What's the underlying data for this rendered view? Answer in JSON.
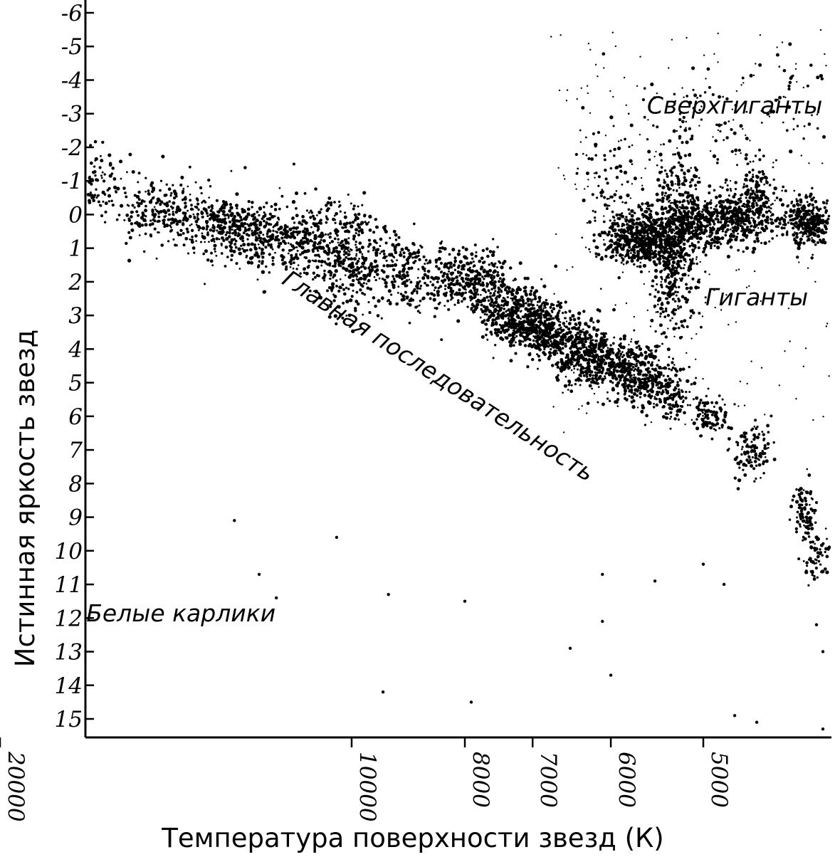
{
  "chart_data": {
    "type": "scatter",
    "xlabel": "Температура поверхности звезд (К)",
    "ylabel": "Истинная яркость звезд",
    "x_scale": "log-reversed",
    "y_inverted": true,
    "ylim": [
      -6,
      15
    ],
    "xlim": [
      38000,
      3300
    ],
    "y_ticks": [
      "-6",
      "-5",
      "-4",
      "-3",
      "-2",
      "-1",
      "0",
      "1",
      "2",
      "3",
      "4",
      "5",
      "6",
      "7",
      "8",
      "9",
      "10",
      "11",
      "12",
      "13",
      "14",
      "15"
    ],
    "x_ticks": [
      {
        "value": 20000,
        "label": "20000"
      },
      {
        "value": 10000,
        "label": "10000"
      },
      {
        "value": 8000,
        "label": "8000"
      },
      {
        "value": 7000,
        "label": "7000"
      },
      {
        "value": 6000,
        "label": "6000"
      },
      {
        "value": 5000,
        "label": "5000"
      }
    ],
    "grid": false,
    "annotations": [
      {
        "text": "Сверхгиганты",
        "x": 4700,
        "y": -3.0
      },
      {
        "text": "Гиганты",
        "x": 4500,
        "y": 2.7
      },
      {
        "text": "Главная последовательность",
        "x": 8500,
        "y": 5.0
      },
      {
        "text": "Белые карлики",
        "x": 14000,
        "y": 12.1
      }
    ],
    "series": [
      {
        "name": "Главная последовательность",
        "clusters": [
          {
            "x": 33000,
            "y": -2.7,
            "sx": 0.01,
            "sy": 0.35,
            "n": 30
          },
          {
            "x": 27500,
            "y": -2.9,
            "sx": 0.012,
            "sy": 0.5,
            "n": 130
          },
          {
            "x": 19000,
            "y": -1.3,
            "sx": 0.025,
            "sy": 0.45,
            "n": 320
          },
          {
            "x": 16800,
            "y": -0.9,
            "sx": 0.015,
            "sy": 0.5,
            "n": 150
          },
          {
            "x": 14500,
            "y": -0.1,
            "sx": 0.02,
            "sy": 0.5,
            "n": 240
          },
          {
            "x": 12800,
            "y": 0.3,
            "sx": 0.017,
            "sy": 0.4,
            "n": 220
          },
          {
            "x": 11500,
            "y": 0.7,
            "sx": 0.03,
            "sy": 0.55,
            "n": 460
          },
          {
            "x": 10000,
            "y": 1.4,
            "sx": 0.017,
            "sy": 0.8,
            "n": 380
          },
          {
            "x": 9000,
            "y": 1.7,
            "sx": 0.012,
            "sy": 0.55,
            "n": 150
          },
          {
            "x": 8100,
            "y": 1.9,
            "sx": 0.02,
            "sy": 0.45,
            "n": 240
          },
          {
            "x": 7700,
            "y": 2.3,
            "sx": 0.016,
            "sy": 0.5,
            "n": 190
          },
          {
            "x": 7400,
            "y": 3.1,
            "sx": 0.01,
            "sy": 0.35,
            "n": 90
          },
          {
            "x": 7100,
            "y": 3.0,
            "sx": 0.014,
            "sy": 0.45,
            "n": 280
          },
          {
            "x": 6750,
            "y": 3.5,
            "sx": 0.015,
            "sy": 0.4,
            "n": 380
          },
          {
            "x": 6400,
            "y": 4.3,
            "sx": 0.012,
            "sy": 0.45,
            "n": 230
          },
          {
            "x": 6200,
            "y": 4.0,
            "sx": 0.008,
            "sy": 0.4,
            "n": 90
          },
          {
            "x": 5900,
            "y": 4.5,
            "sx": 0.016,
            "sy": 0.35,
            "n": 290
          },
          {
            "x": 5600,
            "y": 5.0,
            "sx": 0.012,
            "sy": 0.45,
            "n": 230
          },
          {
            "x": 5300,
            "y": 5.5,
            "sx": 0.008,
            "sy": 0.45,
            "n": 90
          },
          {
            "x": 5000,
            "y": 5.9,
            "sx": 0.006,
            "sy": 0.3,
            "n": 55
          },
          {
            "x": 4850,
            "y": 6.1,
            "sx": 0.006,
            "sy": 0.3,
            "n": 40
          },
          {
            "x": 4550,
            "y": 7.0,
            "sx": 0.007,
            "sy": 0.45,
            "n": 110
          },
          {
            "x": 4100,
            "y": 8.8,
            "sx": 0.005,
            "sy": 0.4,
            "n": 100
          },
          {
            "x": 4000,
            "y": 10.2,
            "sx": 0.005,
            "sy": 0.4,
            "n": 60
          }
        ]
      },
      {
        "name": "Гиганты",
        "clusters": [
          {
            "x": 5700,
            "y": 0.8,
            "sx": 0.018,
            "sy": 0.35,
            "n": 340
          },
          {
            "x": 5400,
            "y": 0.5,
            "sx": 0.02,
            "sy": 0.45,
            "n": 420
          },
          {
            "x": 5300,
            "y": 1.8,
            "sx": 0.01,
            "sy": 0.8,
            "n": 260
          },
          {
            "x": 5250,
            "y": -0.6,
            "sx": 0.008,
            "sy": 0.6,
            "n": 160
          },
          {
            "x": 4900,
            "y": 0.2,
            "sx": 0.018,
            "sy": 0.35,
            "n": 320
          },
          {
            "x": 4600,
            "y": 0.0,
            "sx": 0.013,
            "sy": 0.45,
            "n": 280
          },
          {
            "x": 4500,
            "y": -0.8,
            "sx": 0.008,
            "sy": 0.4,
            "n": 70
          },
          {
            "x": 4050,
            "y": 0.2,
            "sx": 0.012,
            "sy": 0.35,
            "n": 320
          }
        ]
      },
      {
        "name": "Сверхгиганты",
        "clusters": [
          {
            "x": 6000,
            "y": -1.0,
            "sx": 0.015,
            "sy": 1.0,
            "n": 90
          },
          {
            "x": 5000,
            "y": -2.5,
            "sx": 0.03,
            "sy": 0.9,
            "n": 90
          },
          {
            "x": 4200,
            "y": -3.5,
            "sx": 0.02,
            "sy": 0.8,
            "n": 40
          }
        ]
      },
      {
        "name": "Белые карлики",
        "clusters": [
          {
            "x": 22000,
            "y": 0.5,
            "sx": 0.2,
            "sy": 1.5,
            "n": 30
          }
        ],
        "points": [
          {
            "x": 10300,
            "y": 9.6
          },
          {
            "x": 12600,
            "y": 9.1
          },
          {
            "x": 17500,
            "y": 10.6
          },
          {
            "x": 12000,
            "y": 10.7
          },
          {
            "x": 11600,
            "y": 11.4
          },
          {
            "x": 9300,
            "y": 11.3
          },
          {
            "x": 8000,
            "y": 11.5
          },
          {
            "x": 9400,
            "y": 14.2
          },
          {
            "x": 7900,
            "y": 14.5
          },
          {
            "x": 6100,
            "y": 10.7
          },
          {
            "x": 6100,
            "y": 12.1
          },
          {
            "x": 6500,
            "y": 12.9
          },
          {
            "x": 6000,
            "y": 13.7
          },
          {
            "x": 5500,
            "y": 10.9
          },
          {
            "x": 5000,
            "y": 10.4
          },
          {
            "x": 4800,
            "y": 11.0
          },
          {
            "x": 4000,
            "y": 12.2
          },
          {
            "x": 3950,
            "y": 13.0
          },
          {
            "x": 4700,
            "y": 14.9
          },
          {
            "x": 4500,
            "y": 15.1
          },
          {
            "x": 3950,
            "y": 15.3
          }
        ]
      },
      {
        "name": "scatter",
        "random_points": {
          "n": 240,
          "xlim": [
            6800,
            3800
          ],
          "ylim": [
            -5.5,
            6.5
          ]
        }
      }
    ]
  }
}
